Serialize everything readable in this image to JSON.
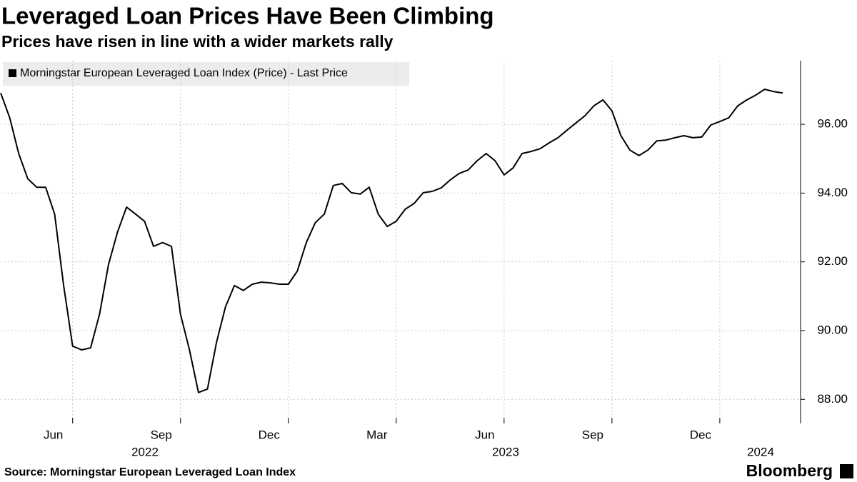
{
  "chart_data": {
    "type": "line",
    "title": "Leveraged Loan Prices Have Been Climbing",
    "subtitle": "Prices have risen in line with a wider markets rally",
    "categories": [
      null,
      null,
      null,
      null,
      null,
      null,
      null,
      null,
      "Jun",
      null,
      null,
      null,
      null,
      null,
      null,
      null,
      null,
      null,
      null,
      null,
      "Sep",
      null,
      null,
      null,
      null,
      null,
      null,
      null,
      null,
      null,
      null,
      null,
      "Dec",
      null,
      null,
      null,
      null,
      null,
      null,
      null,
      null,
      null,
      null,
      null,
      "Mar",
      null,
      null,
      null,
      null,
      null,
      null,
      null,
      null,
      null,
      null,
      null,
      "Jun",
      null,
      null,
      null,
      null,
      null,
      null,
      null,
      null,
      null,
      null,
      null,
      "Sep",
      null,
      null,
      null,
      null,
      null,
      null,
      null,
      null,
      null,
      null,
      null,
      "Dec",
      null,
      null,
      null,
      null,
      null,
      null,
      null
    ],
    "year_labels": [
      "2022",
      "2023",
      "2024"
    ],
    "series": [
      {
        "name": "Morningstar European Leveraged Loan Index (Price) - Last Price",
        "color": "#000000",
        "values": [
          96.91,
          96.19,
          95.15,
          94.42,
          94.17,
          94.17,
          93.39,
          91.31,
          89.55,
          89.44,
          89.5,
          90.48,
          91.93,
          92.87,
          93.59,
          93.39,
          93.18,
          92.45,
          92.56,
          92.45,
          90.48,
          89.44,
          88.2,
          88.3,
          89.65,
          90.69,
          91.31,
          91.17,
          91.35,
          91.41,
          91.39,
          91.35,
          91.35,
          91.73,
          92.56,
          93.14,
          93.39,
          94.22,
          94.28,
          94.01,
          93.97,
          94.17,
          93.39,
          93.03,
          93.18,
          93.53,
          93.7,
          94.01,
          94.05,
          94.15,
          94.38,
          94.57,
          94.67,
          94.94,
          95.15,
          94.94,
          94.53,
          94.73,
          95.15,
          95.21,
          95.29,
          95.46,
          95.61,
          95.83,
          96.04,
          96.25,
          96.54,
          96.71,
          96.39,
          95.67,
          95.25,
          95.09,
          95.25,
          95.52,
          95.54,
          95.61,
          95.67,
          95.61,
          95.63,
          95.98,
          96.08,
          96.19,
          96.54,
          96.71,
          96.85,
          97.02,
          96.95,
          96.91
        ]
      }
    ],
    "ylim": [
      87.3,
      97.85
    ],
    "yticks": [
      {
        "value": 88,
        "label": "88.00"
      },
      {
        "value": 90,
        "label": "90.00"
      },
      {
        "value": 92,
        "label": "92.00"
      },
      {
        "value": 94,
        "label": "94.00"
      },
      {
        "value": 96,
        "label": "96.00"
      }
    ],
    "grid": true,
    "legend": "top-left",
    "source": "Source: Morningstar European Leveraged Loan Index",
    "brand": "Bloomberg"
  }
}
